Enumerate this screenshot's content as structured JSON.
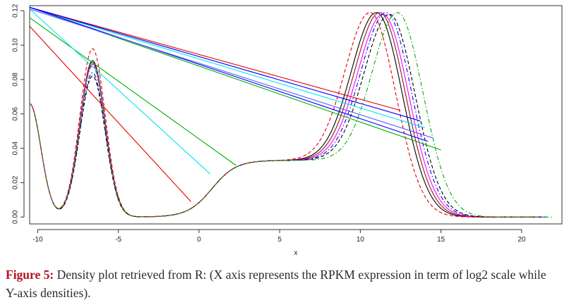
{
  "chart_data": {
    "type": "line",
    "title": "",
    "xlabel": "x",
    "ylabel": "",
    "xlim": [
      -10.5,
      22.5
    ],
    "ylim": [
      -0.004,
      0.123
    ],
    "x_ticks": [
      -10,
      -5,
      0,
      5,
      10,
      15,
      20
    ],
    "y_ticks": [
      0.0,
      0.02,
      0.04,
      0.06,
      0.08,
      0.1,
      0.12
    ],
    "y_tick_labels": [
      "0.00",
      "0.02",
      "0.04",
      "0.06",
      "0.08",
      "0.10",
      "0.12"
    ],
    "grid": false,
    "legend": "none",
    "series": [
      {
        "color": "#000000",
        "dash": "solid",
        "peak1": 0.091,
        "peak2": 0.119,
        "peak2_x": 11.0,
        "end_x": 21.2
      },
      {
        "color": "#8B1A1A",
        "dash": "solid",
        "peak1": 0.09,
        "peak2": 0.119,
        "peak2_x": 11.2,
        "end_x": 21.3
      },
      {
        "color": "#ff00ff",
        "dash": "solid",
        "peak1": 0.089,
        "peak2": 0.118,
        "peak2_x": 11.4,
        "end_x": 21.4
      },
      {
        "color": "#0000ff",
        "dash": "dashdot",
        "peak1": 0.084,
        "peak2": 0.119,
        "peak2_x": 11.6,
        "end_x": 21.5
      },
      {
        "color": "#000000",
        "dash": "dashed",
        "peak1": 0.082,
        "peak2": 0.118,
        "peak2_x": 11.8,
        "end_x": 21.6
      },
      {
        "color": "#e60000",
        "dash": "dashed",
        "peak1": 0.098,
        "peak2": 0.119,
        "peak2_x": 10.6,
        "end_x": 21.0
      },
      {
        "color": "#00b000",
        "dash": "dashdot",
        "peak1": 0.088,
        "peak2": 0.119,
        "peak2_x": 12.3,
        "end_x": 22.0
      }
    ],
    "straight_lines": [
      {
        "color": "#e60000",
        "x": [
          -10.5,
          -0.5
        ],
        "y": [
          0.111,
          0.009
        ]
      },
      {
        "color": "#e60000",
        "x": [
          -10.5,
          12.5
        ],
        "y": [
          0.122,
          0.062
        ]
      },
      {
        "color": "#00b000",
        "x": [
          -10.5,
          2.3
        ],
        "y": [
          0.116,
          0.03
        ]
      },
      {
        "color": "#00b000",
        "x": [
          -10.5,
          15.0
        ],
        "y": [
          0.122,
          0.039
        ]
      },
      {
        "color": "#00e5ee",
        "x": [
          -10.5,
          0.7
        ],
        "y": [
          0.121,
          0.025
        ]
      },
      {
        "color": "#00e5ee",
        "x": [
          -10.5,
          14.0
        ],
        "y": [
          0.122,
          0.052
        ]
      },
      {
        "color": "#0000ff",
        "x": [
          -10.5,
          13.7
        ],
        "y": [
          0.122,
          0.056
        ]
      },
      {
        "color": "#0000ff",
        "x": [
          -10.5,
          14.2
        ],
        "y": [
          0.122,
          0.044
        ]
      },
      {
        "color": "#5a5aff",
        "x": [
          -10.5,
          14.5
        ],
        "y": [
          0.121,
          0.046
        ]
      }
    ]
  },
  "caption": {
    "label": "Figure 5:",
    "text": " Density plot retrieved from R: (X axis represents the RPKM expression in term of log2 scale while Y-axis densities)."
  }
}
